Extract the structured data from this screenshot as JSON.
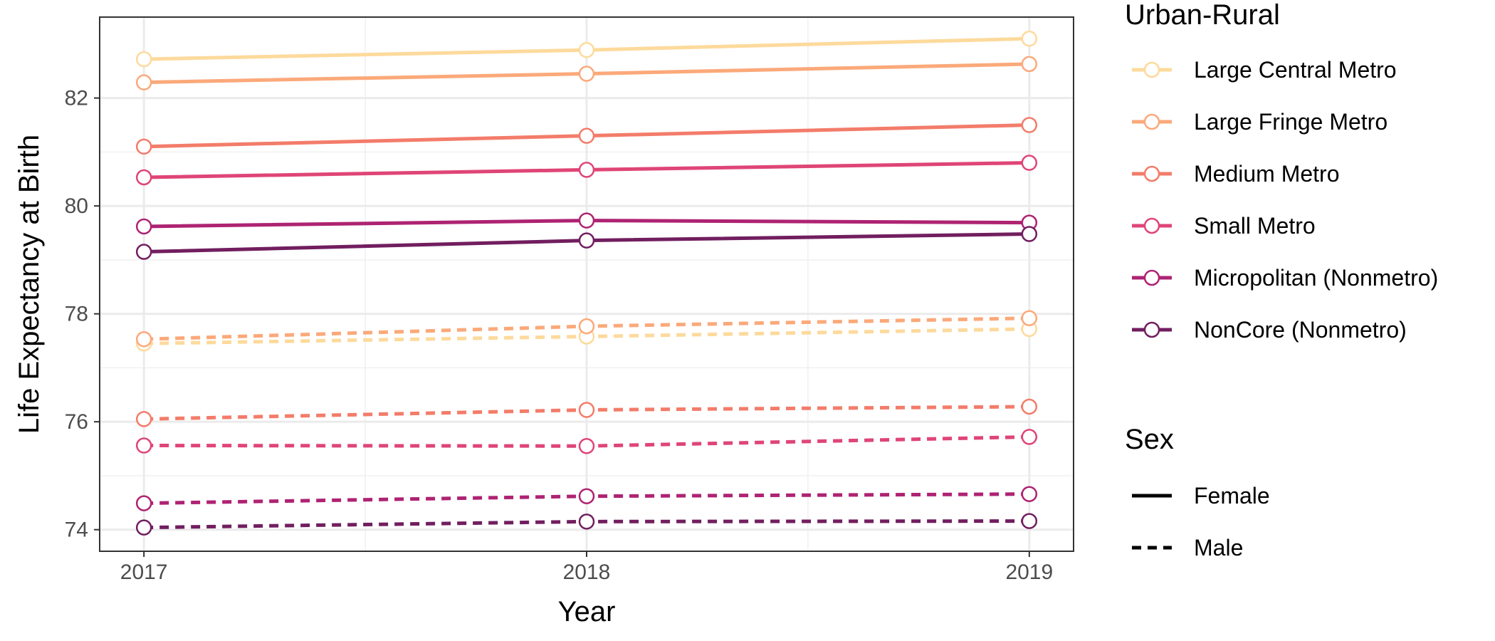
{
  "chart_data": {
    "type": "line",
    "xlabel": "Year",
    "ylabel": "Life Expectancy at Birth",
    "x": [
      2017,
      2018,
      2019
    ],
    "x_ticks": [
      "2017",
      "2018",
      "2019"
    ],
    "xlim": [
      2016.9,
      2019.1
    ],
    "ylim": [
      73.6,
      83.5
    ],
    "y_ticks": [
      "74",
      "76",
      "78",
      "80",
      "82"
    ],
    "grid": true,
    "legend_placement": "right",
    "legends": {
      "color_title": "Urban-Rural",
      "linetype_title": "Sex",
      "sex_labels": [
        "Female",
        "Male"
      ]
    },
    "categories": [
      {
        "name": "Large Central Metro",
        "color": "#FDDA9C"
      },
      {
        "name": "Large Fringe Metro",
        "color": "#FBA97A"
      },
      {
        "name": "Medium Metro",
        "color": "#F37C6A"
      },
      {
        "name": "Small Metro",
        "color": "#DF4577"
      },
      {
        "name": "Micropolitan (Nonmetro)",
        "color": "#AE2372"
      },
      {
        "name": "NonCore (Nonmetro)",
        "color": "#711E5F"
      }
    ],
    "series": [
      {
        "category": "Large Central Metro",
        "sex": "Female",
        "values": [
          82.72,
          82.89,
          83.1
        ]
      },
      {
        "category": "Large Fringe Metro",
        "sex": "Female",
        "values": [
          82.29,
          82.45,
          82.63
        ]
      },
      {
        "category": "Medium Metro",
        "sex": "Female",
        "values": [
          81.1,
          81.3,
          81.5
        ]
      },
      {
        "category": "Small Metro",
        "sex": "Female",
        "values": [
          80.53,
          80.67,
          80.8
        ]
      },
      {
        "category": "Micropolitan (Nonmetro)",
        "sex": "Female",
        "values": [
          79.62,
          79.73,
          79.69
        ]
      },
      {
        "category": "NonCore (Nonmetro)",
        "sex": "Female",
        "values": [
          79.15,
          79.36,
          79.48
        ]
      },
      {
        "category": "Large Central Metro",
        "sex": "Male",
        "values": [
          77.45,
          77.58,
          77.72
        ]
      },
      {
        "category": "Large Fringe Metro",
        "sex": "Male",
        "values": [
          77.53,
          77.77,
          77.92
        ]
      },
      {
        "category": "Medium Metro",
        "sex": "Male",
        "values": [
          76.05,
          76.22,
          76.28
        ]
      },
      {
        "category": "Small Metro",
        "sex": "Male",
        "values": [
          75.56,
          75.55,
          75.72
        ]
      },
      {
        "category": "Micropolitan (Nonmetro)",
        "sex": "Male",
        "values": [
          74.49,
          74.62,
          74.66
        ]
      },
      {
        "category": "NonCore (Nonmetro)",
        "sex": "Male",
        "values": [
          74.04,
          74.15,
          74.16
        ]
      }
    ]
  }
}
